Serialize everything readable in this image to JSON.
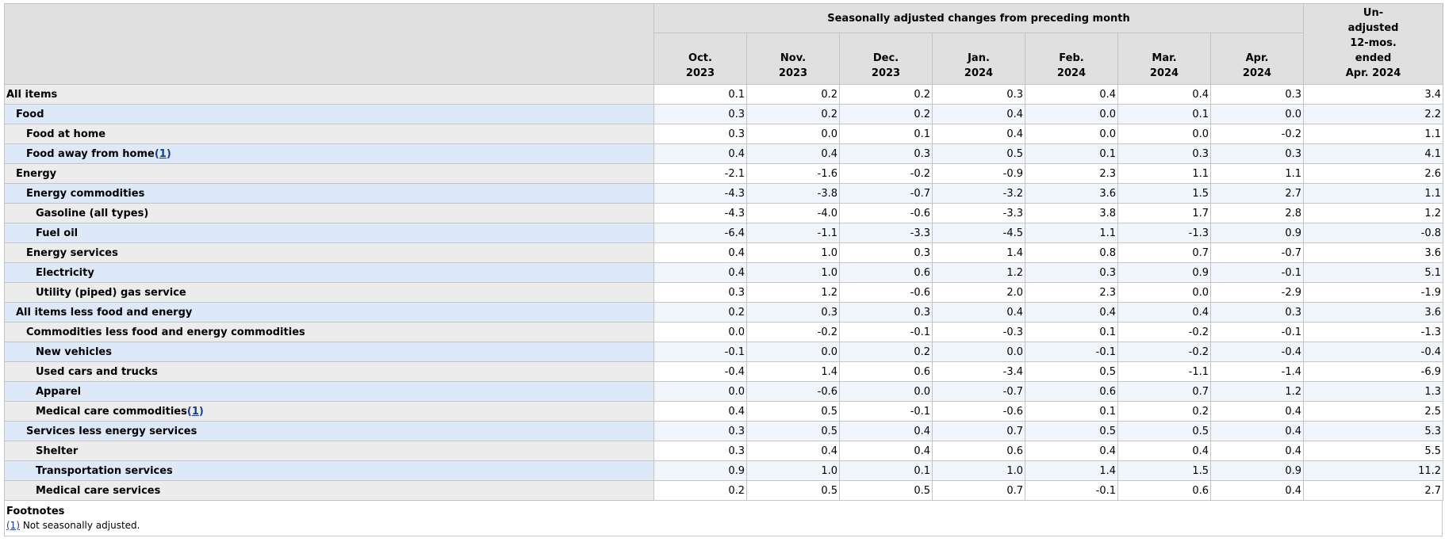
{
  "header": {
    "group_title": "Seasonally adjusted changes from preceding month",
    "columns": [
      {
        "line1": "Oct.",
        "line2": "2023"
      },
      {
        "line1": "Nov.",
        "line2": "2023"
      },
      {
        "line1": "Dec.",
        "line2": "2023"
      },
      {
        "line1": "Jan.",
        "line2": "2024"
      },
      {
        "line1": "Feb.",
        "line2": "2024"
      },
      {
        "line1": "Mar.",
        "line2": "2024"
      },
      {
        "line1": "Apr.",
        "line2": "2024"
      }
    ],
    "unadjusted": [
      "Un-",
      "adjusted",
      "12-mos.",
      "ended",
      "Apr. 2024"
    ]
  },
  "rows": [
    {
      "label": "All items",
      "indent": 0,
      "values": [
        "0.1",
        "0.2",
        "0.2",
        "0.3",
        "0.4",
        "0.4",
        "0.3",
        "3.4"
      ]
    },
    {
      "label": "Food",
      "indent": 1,
      "values": [
        "0.3",
        "0.2",
        "0.2",
        "0.4",
        "0.0",
        "0.1",
        "0.0",
        "2.2"
      ]
    },
    {
      "label": "Food at home",
      "indent": 2,
      "values": [
        "0.3",
        "0.0",
        "0.1",
        "0.4",
        "0.0",
        "0.0",
        "-0.2",
        "1.1"
      ]
    },
    {
      "label": "Food away from home",
      "indent": 2,
      "footnote": "1",
      "values": [
        "0.4",
        "0.4",
        "0.3",
        "0.5",
        "0.1",
        "0.3",
        "0.3",
        "4.1"
      ]
    },
    {
      "label": "Energy",
      "indent": 1,
      "values": [
        "-2.1",
        "-1.6",
        "-0.2",
        "-0.9",
        "2.3",
        "1.1",
        "1.1",
        "2.6"
      ]
    },
    {
      "label": "Energy commodities",
      "indent": 2,
      "values": [
        "-4.3",
        "-3.8",
        "-0.7",
        "-3.2",
        "3.6",
        "1.5",
        "2.7",
        "1.1"
      ]
    },
    {
      "label": "Gasoline (all types)",
      "indent": 3,
      "values": [
        "-4.3",
        "-4.0",
        "-0.6",
        "-3.3",
        "3.8",
        "1.7",
        "2.8",
        "1.2"
      ]
    },
    {
      "label": "Fuel oil",
      "indent": 3,
      "values": [
        "-6.4",
        "-1.1",
        "-3.3",
        "-4.5",
        "1.1",
        "-1.3",
        "0.9",
        "-0.8"
      ]
    },
    {
      "label": "Energy services",
      "indent": 2,
      "values": [
        "0.4",
        "1.0",
        "0.3",
        "1.4",
        "0.8",
        "0.7",
        "-0.7",
        "3.6"
      ]
    },
    {
      "label": "Electricity",
      "indent": 3,
      "values": [
        "0.4",
        "1.0",
        "0.6",
        "1.2",
        "0.3",
        "0.9",
        "-0.1",
        "5.1"
      ]
    },
    {
      "label": "Utility (piped) gas service",
      "indent": 3,
      "values": [
        "0.3",
        "1.2",
        "-0.6",
        "2.0",
        "2.3",
        "0.0",
        "-2.9",
        "-1.9"
      ]
    },
    {
      "label": "All items less food and energy",
      "indent": 1,
      "values": [
        "0.2",
        "0.3",
        "0.3",
        "0.4",
        "0.4",
        "0.4",
        "0.3",
        "3.6"
      ]
    },
    {
      "label": "Commodities less food and energy commodities",
      "indent": 2,
      "values": [
        "0.0",
        "-0.2",
        "-0.1",
        "-0.3",
        "0.1",
        "-0.2",
        "-0.1",
        "-1.3"
      ]
    },
    {
      "label": "New vehicles",
      "indent": 3,
      "values": [
        "-0.1",
        "0.0",
        "0.2",
        "0.0",
        "-0.1",
        "-0.2",
        "-0.4",
        "-0.4"
      ]
    },
    {
      "label": "Used cars and trucks",
      "indent": 3,
      "values": [
        "-0.4",
        "1.4",
        "0.6",
        "-3.4",
        "0.5",
        "-1.1",
        "-1.4",
        "-6.9"
      ]
    },
    {
      "label": "Apparel",
      "indent": 3,
      "values": [
        "0.0",
        "-0.6",
        "0.0",
        "-0.7",
        "0.6",
        "0.7",
        "1.2",
        "1.3"
      ]
    },
    {
      "label": "Medical care commodities",
      "indent": 3,
      "footnote": "1",
      "values": [
        "0.4",
        "0.5",
        "-0.1",
        "-0.6",
        "0.1",
        "0.2",
        "0.4",
        "2.5"
      ]
    },
    {
      "label": "Services less energy services",
      "indent": 2,
      "values": [
        "0.3",
        "0.5",
        "0.4",
        "0.7",
        "0.5",
        "0.5",
        "0.4",
        "5.3"
      ]
    },
    {
      "label": "Shelter",
      "indent": 3,
      "values": [
        "0.3",
        "0.4",
        "0.4",
        "0.6",
        "0.4",
        "0.4",
        "0.4",
        "5.5"
      ]
    },
    {
      "label": "Transportation services",
      "indent": 3,
      "values": [
        "0.9",
        "1.0",
        "0.1",
        "1.0",
        "1.4",
        "1.5",
        "0.9",
        "11.2"
      ]
    },
    {
      "label": "Medical care services",
      "indent": 3,
      "values": [
        "0.2",
        "0.5",
        "0.5",
        "0.7",
        "-0.1",
        "0.6",
        "0.4",
        "2.7"
      ]
    }
  ],
  "footnotes": {
    "title": "Footnotes",
    "items": [
      {
        "ref": "(1)",
        "text": " Not seasonally adjusted."
      }
    ]
  },
  "colors": {
    "header_bg": "#e0e0e0",
    "label_odd_bg": "#ececec",
    "label_even_bg": "#dde9f9",
    "value_even_bg": "#f1f6fd",
    "link": "#1a3e8c"
  }
}
